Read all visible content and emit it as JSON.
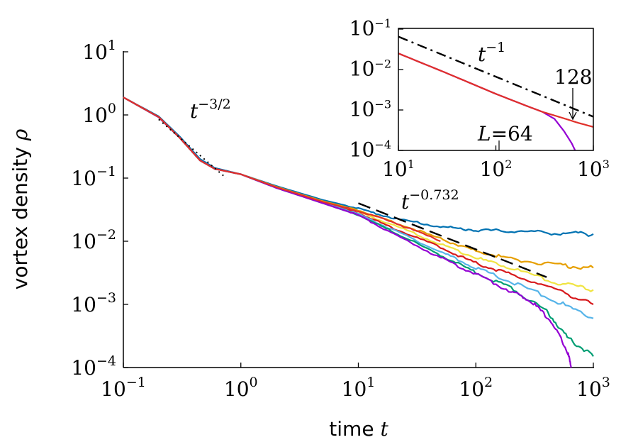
{
  "chart_data": [
    {
      "type": "line",
      "xscale": "log",
      "yscale": "log",
      "xlim": [
        0.1,
        1000
      ],
      "ylim": [
        0.0001,
        10
      ],
      "xlabel": "time",
      "xlabel_var": "t",
      "ylabel": "vortex density",
      "ylabel_var": "ρ",
      "grid": false,
      "xticks": [
        {
          "base": "10",
          "exp": "−1"
        },
        {
          "base": "10",
          "exp": "0"
        },
        {
          "base": "10",
          "exp": "1"
        },
        {
          "base": "10",
          "exp": "2"
        },
        {
          "base": "10",
          "exp": "3"
        }
      ],
      "yticks": [
        {
          "base": "10",
          "exp": "1"
        },
        {
          "base": "10",
          "exp": "0"
        },
        {
          "base": "10",
          "exp": "−1"
        },
        {
          "base": "10",
          "exp": "−2"
        },
        {
          "base": "10",
          "exp": "−3"
        },
        {
          "base": "10",
          "exp": "−4"
        }
      ],
      "series": [
        {
          "color": "#0072b2",
          "x": [
            0.1,
            0.2,
            0.3,
            0.45,
            0.6,
            1,
            2,
            5,
            10,
            20,
            50,
            100,
            200,
            500,
            1000
          ],
          "y": [
            1.9,
            0.95,
            0.46,
            0.2,
            0.145,
            0.115,
            0.075,
            0.045,
            0.033,
            0.023,
            0.017,
            0.015,
            0.0145,
            0.0135,
            0.013
          ]
        },
        {
          "color": "#e69f00",
          "x": [
            0.1,
            0.2,
            0.3,
            0.45,
            0.6,
            1,
            2,
            5,
            10,
            20,
            50,
            100,
            200,
            500,
            1000
          ],
          "y": [
            1.9,
            0.92,
            0.44,
            0.19,
            0.14,
            0.115,
            0.073,
            0.043,
            0.031,
            0.02,
            0.011,
            0.007,
            0.0052,
            0.0042,
            0.0038
          ]
        },
        {
          "color": "#f0e442",
          "x": [
            0.1,
            0.2,
            0.3,
            0.45,
            0.6,
            1,
            2,
            5,
            10,
            20,
            50,
            100,
            200,
            500,
            1000
          ],
          "y": [
            1.9,
            0.92,
            0.44,
            0.19,
            0.14,
            0.115,
            0.072,
            0.042,
            0.029,
            0.018,
            0.009,
            0.0055,
            0.0037,
            0.0022,
            0.0017
          ]
        },
        {
          "color": "#d7191c",
          "x": [
            0.1,
            0.2,
            0.3,
            0.45,
            0.6,
            1,
            2,
            5,
            10,
            20,
            50,
            100,
            200,
            500,
            1000
          ],
          "y": [
            1.9,
            0.92,
            0.44,
            0.19,
            0.14,
            0.115,
            0.071,
            0.041,
            0.028,
            0.016,
            0.008,
            0.0045,
            0.003,
            0.0017,
            0.001
          ]
        },
        {
          "color": "#56b4e9",
          "x": [
            0.1,
            0.2,
            0.3,
            0.45,
            0.6,
            1,
            2,
            5,
            10,
            20,
            50,
            100,
            200,
            500,
            1000
          ],
          "y": [
            1.9,
            0.92,
            0.44,
            0.19,
            0.14,
            0.115,
            0.071,
            0.041,
            0.027,
            0.015,
            0.0068,
            0.0038,
            0.0023,
            0.0011,
            0.0006
          ]
        },
        {
          "color": "#009e73",
          "x": [
            0.1,
            0.2,
            0.3,
            0.45,
            0.6,
            1,
            2,
            5,
            10,
            20,
            50,
            100,
            200,
            400,
            600,
            1000
          ],
          "y": [
            1.9,
            0.92,
            0.44,
            0.19,
            0.14,
            0.115,
            0.07,
            0.04,
            0.026,
            0.014,
            0.006,
            0.0032,
            0.0018,
            0.0008,
            0.0003,
            0.00015
          ]
        },
        {
          "color": "#9400d3",
          "x": [
            0.1,
            0.2,
            0.3,
            0.45,
            0.6,
            1,
            2,
            5,
            10,
            20,
            50,
            100,
            200,
            300,
            450,
            600,
            650
          ],
          "y": [
            1.9,
            0.92,
            0.44,
            0.19,
            0.14,
            0.115,
            0.07,
            0.04,
            0.026,
            0.013,
            0.0055,
            0.003,
            0.0016,
            0.0011,
            0.0005,
            0.00018,
            0.0001
          ]
        },
        {
          "color": "#e0302a",
          "x": [
            0.1,
            0.2,
            0.3,
            0.45,
            0.6,
            1,
            2,
            5,
            10,
            20,
            50
          ],
          "y": [
            1.9,
            0.93,
            0.44,
            0.19,
            0.14,
            0.115,
            0.072,
            0.042,
            0.03,
            0.02,
            0.01
          ]
        }
      ],
      "reference_lines": [
        {
          "style": "dotted",
          "x": [
            0.2,
            0.75
          ],
          "y": [
            0.85,
            0.1
          ]
        },
        {
          "style": "dashed",
          "x": [
            10,
            400
          ],
          "y": [
            0.04,
            0.0027
          ]
        }
      ],
      "annotations": [
        {
          "base": "t",
          "exp": "−3/2"
        },
        {
          "base": "t",
          "exp": "−0.732"
        }
      ]
    },
    {
      "type": "line",
      "xscale": "log",
      "yscale": "log",
      "xlim": [
        10,
        1000
      ],
      "ylim": [
        0.0001,
        0.1
      ],
      "grid": false,
      "xticks": [
        {
          "base": "10",
          "exp": "1"
        },
        {
          "base": "10",
          "exp": "2"
        },
        {
          "base": "10",
          "exp": "3"
        }
      ],
      "yticks": [
        {
          "base": "10",
          "exp": "−1"
        },
        {
          "base": "10",
          "exp": "−2"
        },
        {
          "base": "10",
          "exp": "−3"
        },
        {
          "base": "10",
          "exp": "−4"
        }
      ],
      "series": [
        {
          "name": "L=64",
          "color": "#9400d3",
          "x": [
            10,
            30,
            100,
            200,
            300,
            400,
            500,
            600,
            650
          ],
          "y": [
            0.025,
            0.0085,
            0.0025,
            0.0013,
            0.0009,
            0.0006,
            0.0003,
            0.00015,
            0.0001
          ]
        },
        {
          "name": "128",
          "color": "#e0302a",
          "x": [
            10,
            30,
            100,
            200,
            300,
            500,
            700,
            1000
          ],
          "y": [
            0.025,
            0.0085,
            0.0025,
            0.0013,
            0.0009,
            0.00062,
            0.00048,
            0.00038
          ]
        }
      ],
      "reference_lines": [
        {
          "style": "dashdot",
          "x": [
            10,
            1000
          ],
          "y": [
            0.065,
            0.00068
          ]
        }
      ],
      "annotations": [
        {
          "base": "t",
          "exp": "−1"
        },
        {
          "text": "128"
        },
        {
          "var": "L",
          "text": "=64"
        }
      ]
    }
  ]
}
